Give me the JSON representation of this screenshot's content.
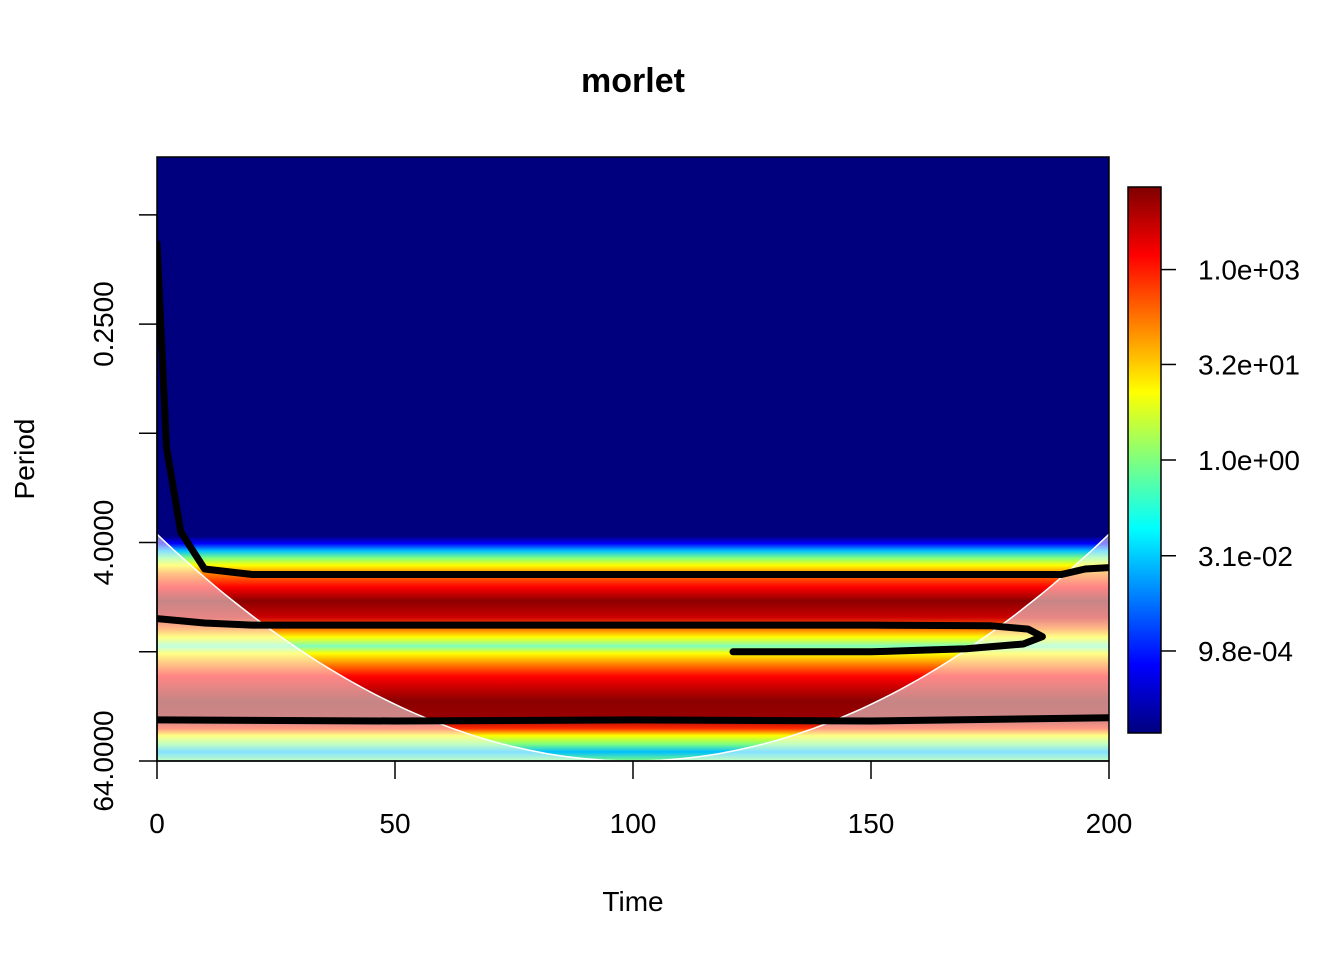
{
  "chart_data": {
    "type": "heatmap",
    "title": "morlet",
    "xlabel": "Time",
    "ylabel": "Period",
    "xlim": [
      0,
      200
    ],
    "x_ticks": [
      0,
      50,
      100,
      150,
      200
    ],
    "y_scale": "log2",
    "y_ticks": [
      0.0625,
      0.25,
      1,
      4,
      16,
      64
    ],
    "y_tick_labels": [
      "0.2500",
      "4.0000",
      "64.0000"
    ],
    "ylim": [
      64,
      0.03
    ],
    "colorbar": {
      "scale": "log",
      "tick_labels": [
        "1.0e+03",
        "3.2e+01",
        "1.0e+00",
        "3.1e-02",
        "9.8e-04"
      ],
      "tick_values": [
        1000,
        32,
        1,
        0.031,
        0.00098
      ],
      "range": [
        5e-05,
        20000
      ],
      "colors": [
        "#00007f",
        "#0000ff",
        "#007fff",
        "#00ffff",
        "#7fff7f",
        "#ffff00",
        "#ff7f00",
        "#ff0000",
        "#7f0000"
      ]
    },
    "bands": [
      {
        "period": 6,
        "power": "high"
      },
      {
        "period": 11,
        "power": "low"
      },
      {
        "period": 20,
        "power": "high"
      },
      {
        "period": 56,
        "power": "low"
      }
    ],
    "significance_contours": [
      {
        "x": [
          0,
          2,
          5,
          10,
          20,
          60,
          100,
          150,
          190,
          195,
          200
        ],
        "y": [
          0.09,
          1.2,
          3.5,
          5.6,
          6.0,
          6.0,
          6.0,
          6.0,
          6.0,
          5.6,
          5.5
        ]
      },
      {
        "x": [
          0,
          10,
          20,
          60,
          100,
          150,
          175,
          183,
          186,
          182,
          170,
          150,
          130,
          121
        ],
        "y": [
          10.5,
          11.1,
          11.4,
          11.4,
          11.4,
          11.4,
          11.5,
          12.0,
          13.2,
          14.5,
          15.4,
          16.0,
          16.0,
          16.0
        ]
      },
      {
        "x": [
          0,
          50,
          100,
          150,
          200
        ],
        "y": [
          38,
          38.5,
          38,
          38.5,
          37
        ]
      }
    ],
    "cone_of_influence": "parabolic edge from (0, 3.6) to (100, 64) to (200, 3.6)"
  }
}
